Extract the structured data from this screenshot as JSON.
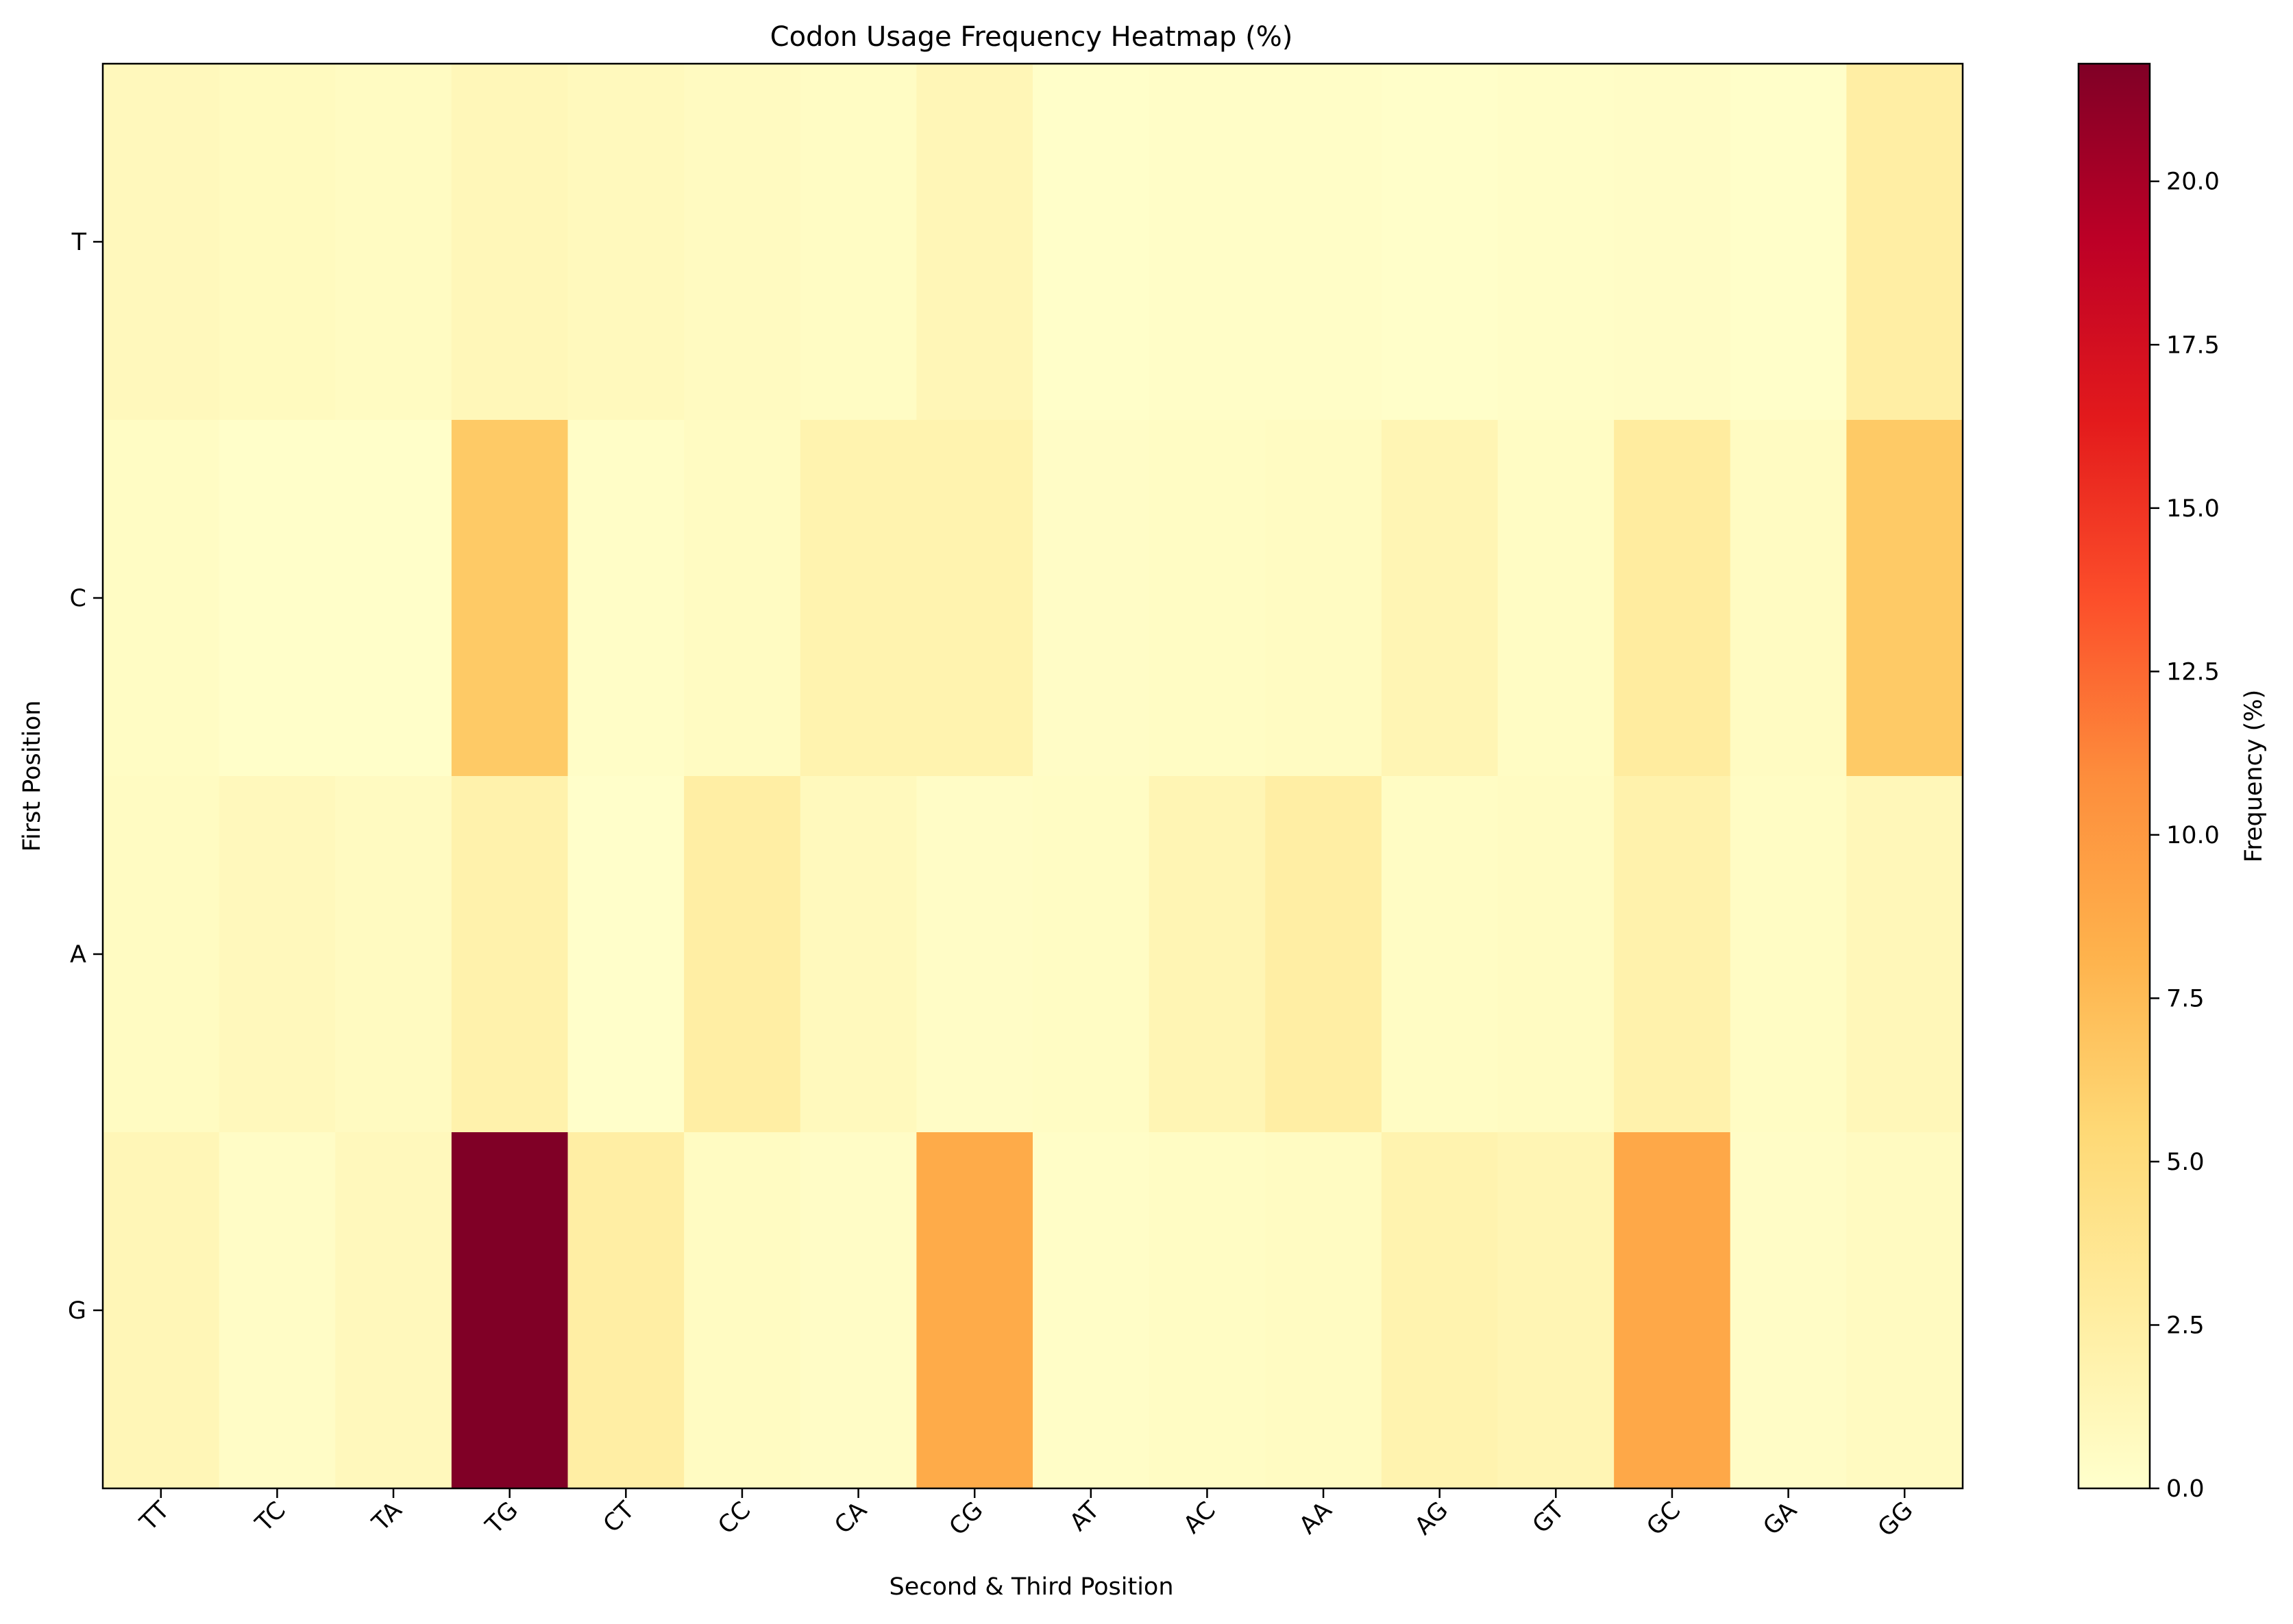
{
  "chart_data": {
    "type": "heatmap",
    "title": "Codon Usage Frequency Heatmap (%)",
    "xlabel": "Second & Third Position",
    "ylabel": "First Position",
    "x_categories": [
      "TT",
      "TC",
      "TA",
      "TG",
      "CT",
      "CC",
      "CA",
      "CG",
      "AT",
      "AC",
      "AA",
      "AG",
      "GT",
      "GC",
      "GA",
      "GG"
    ],
    "y_categories": [
      "T",
      "C",
      "A",
      "G"
    ],
    "values": [
      [
        1.0,
        0.8,
        0.6,
        1.2,
        0.9,
        0.7,
        0.5,
        1.3,
        0.2,
        0.3,
        0.3,
        0.2,
        0.3,
        0.4,
        0.2,
        2.5
      ],
      [
        0.5,
        0.2,
        0.2,
        6.5,
        0.3,
        0.6,
        1.8,
        1.8,
        0.4,
        0.5,
        0.6,
        1.5,
        0.5,
        2.8,
        0.6,
        6.5
      ],
      [
        0.6,
        1.0,
        0.7,
        2.0,
        0.1,
        2.5,
        0.9,
        0.4,
        0.5,
        1.5,
        2.5,
        0.5,
        0.6,
        2.0,
        0.5,
        1.2
      ],
      [
        1.3,
        0.4,
        1.0,
        21.8,
        2.5,
        0.6,
        0.4,
        8.7,
        0.3,
        0.5,
        0.6,
        1.8,
        1.5,
        8.9,
        0.4,
        0.7
      ]
    ],
    "colormap": "YlOrRd",
    "colormap_stops": [
      "#ffffcc",
      "#ffeda0",
      "#fed976",
      "#feb24c",
      "#fd8d3c",
      "#fc4e2a",
      "#e31a1c",
      "#bd0026",
      "#800026"
    ],
    "vmin": 0.0,
    "vmax": 21.8,
    "colorbar": {
      "label": "Frequency (%)",
      "ticks": [
        0.0,
        2.5,
        5.0,
        7.5,
        10.0,
        12.5,
        15.0,
        17.5,
        20.0
      ],
      "tick_labels": [
        "0.0",
        "2.5",
        "5.0",
        "7.5",
        "10.0",
        "12.5",
        "15.0",
        "17.5",
        "20.0"
      ]
    },
    "x_tick_rotation": 45
  }
}
